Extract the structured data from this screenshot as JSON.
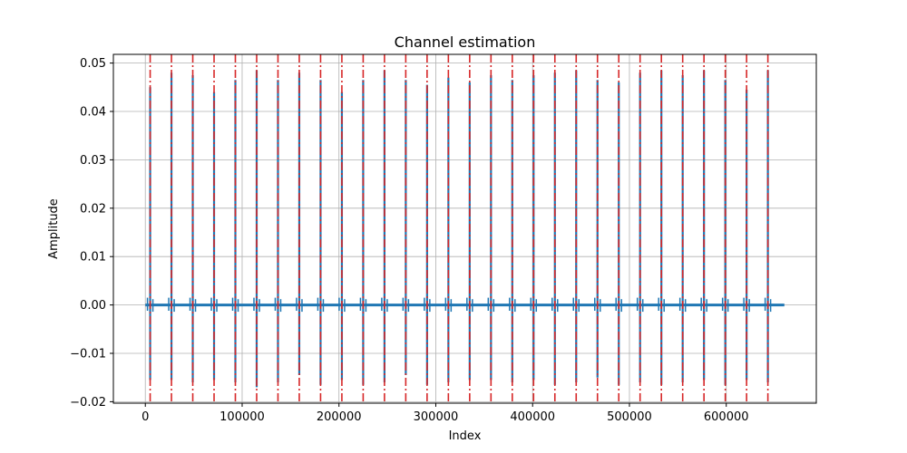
{
  "chart_data": {
    "type": "line",
    "title": "Channel estimation",
    "xlabel": "Index",
    "ylabel": "Amplitude",
    "xlim": [
      -33000,
      693000
    ],
    "ylim": [
      -0.0203,
      0.0518
    ],
    "xticks": [
      0,
      100000,
      200000,
      300000,
      400000,
      500000,
      600000
    ],
    "xtick_labels": [
      "0",
      "100000",
      "200000",
      "300000",
      "400000",
      "500000",
      "600000"
    ],
    "yticks": [
      -0.02,
      -0.01,
      0.0,
      0.01,
      0.02,
      0.03,
      0.04,
      0.05
    ],
    "ytick_labels": [
      "−0.02",
      "−0.01",
      "0.00",
      "0.01",
      "0.02",
      "0.03",
      "0.04",
      "0.05"
    ],
    "grid": true,
    "x_end": 660000,
    "series": [
      {
        "color": "#1f77b4",
        "style": "solid",
        "peaks": [
          {
            "x": 5000,
            "max": 0.045,
            "min": -0.0155
          },
          {
            "x": 27000,
            "max": 0.048,
            "min": -0.0155
          },
          {
            "x": 49000,
            "max": 0.0475,
            "min": -0.016
          },
          {
            "x": 71000,
            "max": 0.044,
            "min": -0.0155
          },
          {
            "x": 93000,
            "max": 0.0465,
            "min": -0.016
          },
          {
            "x": 115000,
            "max": 0.0485,
            "min": -0.017
          },
          {
            "x": 137000,
            "max": 0.0465,
            "min": -0.016
          },
          {
            "x": 159000,
            "max": 0.048,
            "min": -0.0145
          },
          {
            "x": 181000,
            "max": 0.0465,
            "min": -0.0165
          },
          {
            "x": 203000,
            "max": 0.044,
            "min": -0.0155
          },
          {
            "x": 225000,
            "max": 0.0465,
            "min": -0.0165
          },
          {
            "x": 247000,
            "max": 0.0485,
            "min": -0.016
          },
          {
            "x": 269000,
            "max": 0.0465,
            "min": -0.0145
          },
          {
            "x": 291000,
            "max": 0.0455,
            "min": -0.0165
          },
          {
            "x": 313000,
            "max": 0.047,
            "min": -0.016
          },
          {
            "x": 335000,
            "max": 0.046,
            "min": -0.0155
          },
          {
            "x": 357000,
            "max": 0.0475,
            "min": -0.0155
          },
          {
            "x": 379000,
            "max": 0.0465,
            "min": -0.016
          },
          {
            "x": 401000,
            "max": 0.0475,
            "min": -0.0155
          },
          {
            "x": 423000,
            "max": 0.048,
            "min": -0.0165
          },
          {
            "x": 445000,
            "max": 0.0485,
            "min": -0.016
          },
          {
            "x": 467000,
            "max": 0.0465,
            "min": -0.015
          },
          {
            "x": 489000,
            "max": 0.046,
            "min": -0.0165
          },
          {
            "x": 511000,
            "max": 0.048,
            "min": -0.016
          },
          {
            "x": 533000,
            "max": 0.0485,
            "min": -0.0165
          },
          {
            "x": 555000,
            "max": 0.0475,
            "min": -0.016
          },
          {
            "x": 577000,
            "max": 0.0485,
            "min": -0.0155
          },
          {
            "x": 599000,
            "max": 0.0465,
            "min": -0.0165
          },
          {
            "x": 621000,
            "max": 0.0445,
            "min": -0.0155
          },
          {
            "x": 643000,
            "max": 0.0485,
            "min": -0.016
          }
        ]
      },
      {
        "color": "#d62728",
        "style": "dash-dot",
        "vlines_x": [
          5000,
          27000,
          49000,
          71000,
          93000,
          115000,
          137000,
          159000,
          181000,
          203000,
          225000,
          247000,
          269000,
          291000,
          313000,
          335000,
          357000,
          379000,
          401000,
          423000,
          445000,
          467000,
          489000,
          511000,
          533000,
          555000,
          577000,
          599000,
          621000,
          643000
        ]
      }
    ]
  }
}
